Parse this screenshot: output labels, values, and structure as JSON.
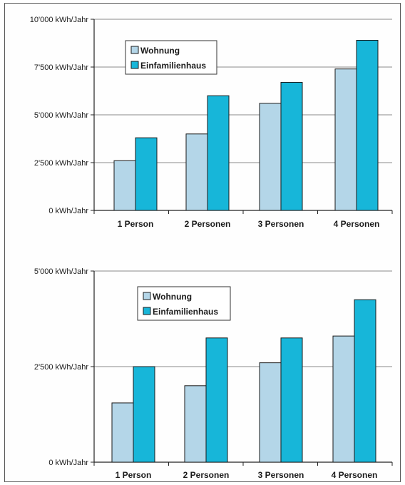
{
  "chart_data": [
    {
      "type": "bar",
      "categories": [
        "1 Person",
        "2 Personen",
        "3 Personen",
        "4 Personen"
      ],
      "ylim": [
        0,
        10000
      ],
      "yticks": [
        {
          "value": 0,
          "label": "0 kWh/Jahr"
        },
        {
          "value": 2500,
          "label": "2'500 kWh/Jahr"
        },
        {
          "value": 5000,
          "label": "5'000 kWh/Jahr"
        },
        {
          "value": 7500,
          "label": "7'500 kWh/Jahr"
        },
        {
          "value": 10000,
          "label": "10'000 kWh/Jahr"
        }
      ],
      "grid": true,
      "legend_position": "top-left",
      "series": [
        {
          "name": "Wohnung",
          "color": "#b4d6e8",
          "values": [
            2600,
            4000,
            5600,
            7400
          ]
        },
        {
          "name": "Einfamilienhaus",
          "color": "#17b6d9",
          "values": [
            3800,
            6000,
            6700,
            8900
          ]
        }
      ]
    },
    {
      "type": "bar",
      "categories": [
        "1 Person",
        "2 Personen",
        "3 Personen",
        "4 Personen"
      ],
      "ylim": [
        0,
        5000
      ],
      "yticks": [
        {
          "value": 0,
          "label": "0 kWh/Jahr"
        },
        {
          "value": 2500,
          "label": "2'500 kWh/Jahr"
        },
        {
          "value": 5000,
          "label": "5'000 kWh/Jahr"
        }
      ],
      "grid": true,
      "legend_position": "top-left",
      "series": [
        {
          "name": "Wohnung",
          "color": "#b4d6e8",
          "values": [
            1550,
            2000,
            2600,
            3300
          ]
        },
        {
          "name": "Einfamilienhaus",
          "color": "#17b6d9",
          "values": [
            2500,
            3250,
            3250,
            4250
          ]
        }
      ]
    }
  ]
}
